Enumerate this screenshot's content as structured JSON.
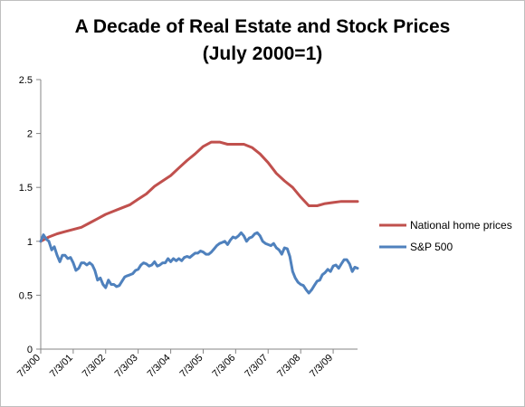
{
  "chart_data": {
    "type": "line",
    "title_line_1": "A Decade of Real Estate and Stock Prices",
    "title_line_2": "(July 2000=1)",
    "xlabel": "",
    "ylabel": "",
    "ylim": [
      0,
      2.5
    ],
    "y_ticks": [
      "0",
      "0.5",
      "1",
      "1.5",
      "2",
      "2.5"
    ],
    "x_range": [
      "2000-07-03",
      "2010-04-03"
    ],
    "x_ticks": [
      {
        "label": "7/3/00",
        "date": "2000-07-03"
      },
      {
        "label": "7/3/01",
        "date": "2001-07-03"
      },
      {
        "label": "7/3/02",
        "date": "2002-07-03"
      },
      {
        "label": "7/3/03",
        "date": "2003-07-03"
      },
      {
        "label": "7/3/04",
        "date": "2004-07-03"
      },
      {
        "label": "7/3/05",
        "date": "2005-07-03"
      },
      {
        "label": "7/3/06",
        "date": "2006-07-03"
      },
      {
        "label": "7/3/07",
        "date": "2007-07-03"
      },
      {
        "label": "7/3/08",
        "date": "2008-07-03"
      },
      {
        "label": "7/3/09",
        "date": "2009-07-03"
      }
    ],
    "grid": false,
    "legend_position": "right",
    "series": [
      {
        "name": "National home prices",
        "color": "#c0504d",
        "points": [
          [
            "2000-07-03",
            1.0
          ],
          [
            "2000-10-03",
            1.04
          ],
          [
            "2001-01-03",
            1.07
          ],
          [
            "2001-04-03",
            1.09
          ],
          [
            "2001-07-03",
            1.11
          ],
          [
            "2001-10-03",
            1.13
          ],
          [
            "2002-01-03",
            1.17
          ],
          [
            "2002-04-03",
            1.21
          ],
          [
            "2002-07-03",
            1.25
          ],
          [
            "2002-10-03",
            1.28
          ],
          [
            "2003-01-03",
            1.31
          ],
          [
            "2003-04-03",
            1.34
          ],
          [
            "2003-07-03",
            1.39
          ],
          [
            "2003-10-03",
            1.44
          ],
          [
            "2004-01-03",
            1.51
          ],
          [
            "2004-04-03",
            1.56
          ],
          [
            "2004-07-03",
            1.61
          ],
          [
            "2004-10-03",
            1.68
          ],
          [
            "2005-01-03",
            1.75
          ],
          [
            "2005-04-03",
            1.81
          ],
          [
            "2005-07-03",
            1.88
          ],
          [
            "2005-10-03",
            1.92
          ],
          [
            "2006-01-03",
            1.92
          ],
          [
            "2006-04-03",
            1.9
          ],
          [
            "2006-07-03",
            1.9
          ],
          [
            "2006-10-03",
            1.9
          ],
          [
            "2007-01-03",
            1.87
          ],
          [
            "2007-04-03",
            1.81
          ],
          [
            "2007-07-03",
            1.73
          ],
          [
            "2007-10-03",
            1.63
          ],
          [
            "2008-01-03",
            1.56
          ],
          [
            "2008-04-03",
            1.5
          ],
          [
            "2008-07-03",
            1.41
          ],
          [
            "2008-10-03",
            1.33
          ],
          [
            "2009-01-03",
            1.33
          ],
          [
            "2009-04-03",
            1.35
          ],
          [
            "2009-07-03",
            1.36
          ],
          [
            "2009-10-03",
            1.37
          ],
          [
            "2010-01-03",
            1.37
          ],
          [
            "2010-04-03",
            1.37
          ]
        ]
      },
      {
        "name": "S&P 500",
        "color": "#4f81bd",
        "points": [
          [
            "2000-07-03",
            1.0
          ],
          [
            "2000-08-03",
            1.06
          ],
          [
            "2000-09-03",
            1.02
          ],
          [
            "2000-10-03",
            1.0
          ],
          [
            "2000-11-03",
            0.92
          ],
          [
            "2000-12-03",
            0.95
          ],
          [
            "2001-01-03",
            0.87
          ],
          [
            "2001-02-03",
            0.81
          ],
          [
            "2001-03-03",
            0.87
          ],
          [
            "2001-04-03",
            0.87
          ],
          [
            "2001-05-03",
            0.84
          ],
          [
            "2001-06-03",
            0.85
          ],
          [
            "2001-07-03",
            0.8
          ],
          [
            "2001-08-03",
            0.73
          ],
          [
            "2001-09-03",
            0.75
          ],
          [
            "2001-10-03",
            0.8
          ],
          [
            "2001-11-03",
            0.8
          ],
          [
            "2001-12-03",
            0.78
          ],
          [
            "2002-01-03",
            0.8
          ],
          [
            "2002-02-03",
            0.78
          ],
          [
            "2002-03-03",
            0.73
          ],
          [
            "2002-04-03",
            0.64
          ],
          [
            "2002-05-03",
            0.66
          ],
          [
            "2002-06-03",
            0.6
          ],
          [
            "2002-07-03",
            0.57
          ],
          [
            "2002-08-03",
            0.64
          ],
          [
            "2002-09-03",
            0.6
          ],
          [
            "2002-10-03",
            0.6
          ],
          [
            "2002-11-03",
            0.58
          ],
          [
            "2002-12-03",
            0.59
          ],
          [
            "2003-01-03",
            0.63
          ],
          [
            "2003-02-03",
            0.67
          ],
          [
            "2003-03-03",
            0.68
          ],
          [
            "2003-04-03",
            0.69
          ],
          [
            "2003-05-03",
            0.7
          ],
          [
            "2003-06-03",
            0.73
          ],
          [
            "2003-07-03",
            0.74
          ],
          [
            "2003-08-03",
            0.78
          ],
          [
            "2003-09-03",
            0.8
          ],
          [
            "2003-10-03",
            0.79
          ],
          [
            "2003-11-03",
            0.77
          ],
          [
            "2003-12-03",
            0.78
          ],
          [
            "2004-01-03",
            0.81
          ],
          [
            "2004-02-03",
            0.77
          ],
          [
            "2004-03-03",
            0.78
          ],
          [
            "2004-04-03",
            0.8
          ],
          [
            "2004-05-03",
            0.8
          ],
          [
            "2004-06-03",
            0.84
          ],
          [
            "2004-07-03",
            0.81
          ],
          [
            "2004-08-03",
            0.84
          ],
          [
            "2004-09-03",
            0.82
          ],
          [
            "2004-10-03",
            0.84
          ],
          [
            "2004-11-03",
            0.82
          ],
          [
            "2004-12-03",
            0.85
          ],
          [
            "2005-01-03",
            0.86
          ],
          [
            "2005-02-03",
            0.85
          ],
          [
            "2005-03-03",
            0.87
          ],
          [
            "2005-04-03",
            0.89
          ],
          [
            "2005-05-03",
            0.89
          ],
          [
            "2005-06-03",
            0.91
          ],
          [
            "2005-07-03",
            0.9
          ],
          [
            "2005-08-03",
            0.88
          ],
          [
            "2005-09-03",
            0.88
          ],
          [
            "2005-10-03",
            0.9
          ],
          [
            "2005-11-03",
            0.93
          ],
          [
            "2005-12-03",
            0.96
          ],
          [
            "2006-01-03",
            0.98
          ],
          [
            "2006-02-03",
            0.99
          ],
          [
            "2006-03-03",
            1.0
          ],
          [
            "2006-04-03",
            0.97
          ],
          [
            "2006-05-03",
            1.01
          ],
          [
            "2006-06-03",
            1.04
          ],
          [
            "2006-07-03",
            1.03
          ],
          [
            "2006-08-03",
            1.05
          ],
          [
            "2006-09-03",
            1.08
          ],
          [
            "2006-10-03",
            1.05
          ],
          [
            "2006-11-03",
            1.0
          ],
          [
            "2006-12-03",
            1.03
          ],
          [
            "2007-01-03",
            1.04
          ],
          [
            "2007-02-03",
            1.07
          ],
          [
            "2007-03-03",
            1.08
          ],
          [
            "2007-04-03",
            1.05
          ],
          [
            "2007-05-03",
            1.0
          ],
          [
            "2007-06-03",
            0.98
          ],
          [
            "2007-07-03",
            0.97
          ],
          [
            "2007-08-03",
            0.96
          ],
          [
            "2007-09-03",
            0.98
          ],
          [
            "2007-10-03",
            0.94
          ],
          [
            "2007-11-03",
            0.92
          ],
          [
            "2007-12-03",
            0.88
          ],
          [
            "2008-01-03",
            0.94
          ],
          [
            "2008-02-03",
            0.93
          ],
          [
            "2008-03-03",
            0.86
          ],
          [
            "2008-04-03",
            0.72
          ],
          [
            "2008-05-03",
            0.66
          ],
          [
            "2008-06-03",
            0.62
          ],
          [
            "2008-07-03",
            0.6
          ],
          [
            "2008-08-03",
            0.59
          ],
          [
            "2008-09-03",
            0.55
          ],
          [
            "2008-10-03",
            0.52
          ],
          [
            "2008-11-03",
            0.55
          ],
          [
            "2008-12-03",
            0.59
          ],
          [
            "2009-01-03",
            0.63
          ],
          [
            "2009-02-03",
            0.64
          ],
          [
            "2009-03-03",
            0.69
          ],
          [
            "2009-04-03",
            0.71
          ],
          [
            "2009-05-03",
            0.74
          ],
          [
            "2009-06-03",
            0.72
          ],
          [
            "2009-07-03",
            0.77
          ],
          [
            "2009-08-03",
            0.78
          ],
          [
            "2009-09-03",
            0.75
          ],
          [
            "2009-10-03",
            0.79
          ],
          [
            "2009-11-03",
            0.83
          ],
          [
            "2009-12-03",
            0.83
          ],
          [
            "2010-01-03",
            0.79
          ],
          [
            "2010-02-03",
            0.72
          ],
          [
            "2010-03-03",
            0.76
          ],
          [
            "2010-04-03",
            0.75
          ]
        ]
      }
    ]
  }
}
